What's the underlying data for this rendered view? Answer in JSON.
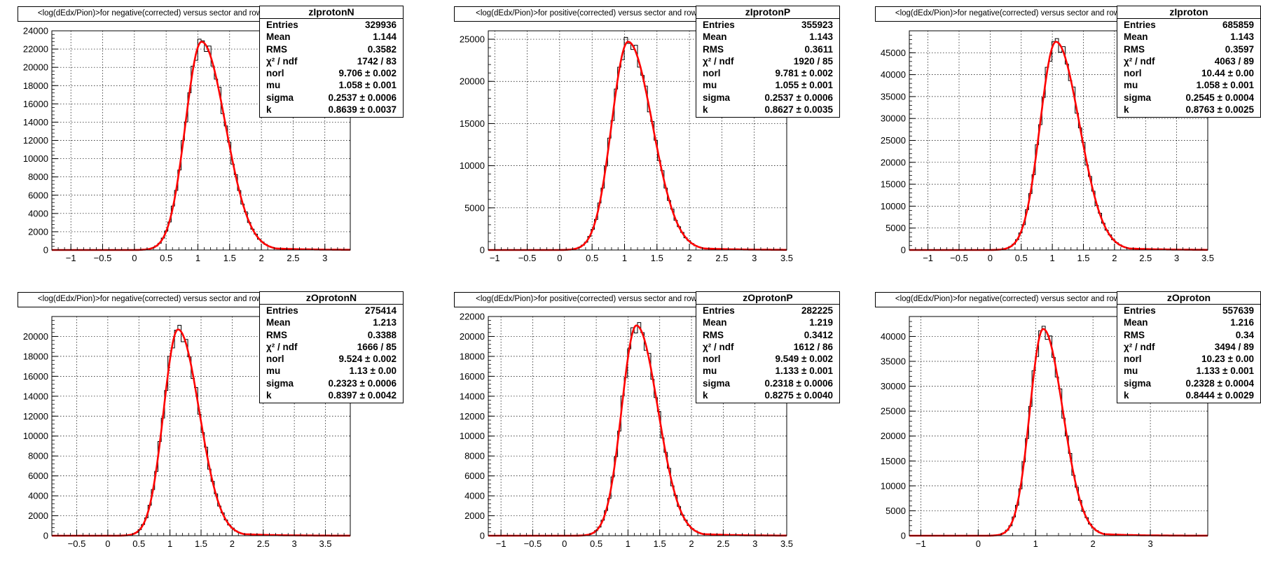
{
  "chart_data": [
    {
      "type": "histogram",
      "name": "zIprotonN",
      "title": "<log(dEdx/Pion)>for negative(corrected) versus sector and row",
      "xlim": [
        -1.3,
        3.4
      ],
      "ylim": [
        0,
        24000
      ],
      "xticks": [
        "-1",
        "-0.5",
        "0",
        "0.5",
        "1",
        "1.5",
        "2",
        "2.5",
        "3"
      ],
      "yticks": [
        "0",
        "2000",
        "4000",
        "6000",
        "8000",
        "10000",
        "12000",
        "14000",
        "16000",
        "18000",
        "20000",
        "22000",
        "24000"
      ],
      "peak": 22800,
      "stats": {
        "Entries": "329936",
        "Mean": "1.144",
        "RMS": "0.3582",
        "chi2_ndf": "1742 / 83",
        "norl": "9.706 ± 0.002",
        "mu": "1.058 ± 0.001",
        "sigma": "0.2537 ± 0.0006",
        "k": "0.8639 ± 0.0037"
      },
      "fit": {
        "mu": 1.058,
        "sigma": 0.2537,
        "k": 0.8639
      }
    },
    {
      "type": "histogram",
      "name": "zIprotonP",
      "title": "<log(dEdx/Pion)>for positive(corrected) versus sector and row",
      "xlim": [
        -1.1,
        3.5
      ],
      "ylim": [
        0,
        26000
      ],
      "xticks": [
        "-1",
        "-0.5",
        "0",
        "0.5",
        "1",
        "1.5",
        "2",
        "2.5",
        "3",
        "3.5"
      ],
      "yticks": [
        "0",
        "5000",
        "10000",
        "15000",
        "20000",
        "25000"
      ],
      "peak": 24700,
      "stats": {
        "Entries": "355923",
        "Mean": "1.143",
        "RMS": "0.3611",
        "chi2_ndf": "1920 / 85",
        "norl": "9.781 ± 0.002",
        "mu": "1.055 ± 0.001",
        "sigma": "0.2537 ± 0.0006",
        "k": "0.8627 ± 0.0035"
      },
      "fit": {
        "mu": 1.055,
        "sigma": 0.2537,
        "k": 0.8627
      }
    },
    {
      "type": "histogram",
      "name": "zIproton",
      "title": "<log(dEdx/Pion)>for negative(corrected) versus sector and row",
      "xlim": [
        -1.3,
        3.5
      ],
      "ylim": [
        0,
        50000
      ],
      "xticks": [
        "-1",
        "-0.5",
        "0",
        "0.5",
        "1",
        "1.5",
        "2",
        "2.5",
        "3",
        "3.5"
      ],
      "yticks": [
        "0",
        "5000",
        "10000",
        "15000",
        "20000",
        "25000",
        "30000",
        "35000",
        "40000",
        "45000"
      ],
      "peak": 47500,
      "stats": {
        "Entries": "685859",
        "Mean": "1.143",
        "RMS": "0.3597",
        "chi2_ndf": "4063 / 89",
        "norl": "10.44 ± 0.00",
        "mu": "1.058 ± 0.001",
        "sigma": "0.2545 ± 0.0004",
        "k": "0.8763 ± 0.0025"
      },
      "fit": {
        "mu": 1.058,
        "sigma": 0.2545,
        "k": 0.8763
      }
    },
    {
      "type": "histogram",
      "name": "zOprotonN",
      "title": "<log(dEdx/Pion)>for negative(corrected) versus sector and row",
      "xlim": [
        -0.9,
        3.9
      ],
      "ylim": [
        0,
        22000
      ],
      "xticks": [
        "-0.5",
        "0",
        "0.5",
        "1",
        "1.5",
        "2",
        "2.5",
        "3",
        "3.5"
      ],
      "yticks": [
        "0",
        "2000",
        "4000",
        "6000",
        "8000",
        "10000",
        "12000",
        "14000",
        "16000",
        "18000",
        "20000"
      ],
      "peak": 20700,
      "stats": {
        "Entries": "275414",
        "Mean": "1.213",
        "RMS": "0.3388",
        "chi2_ndf": "1666 / 85",
        "norl": "9.524 ± 0.002",
        "mu": "1.13 ± 0.00",
        "sigma": "0.2323 ± 0.0006",
        "k": "0.8397 ± 0.0042"
      },
      "fit": {
        "mu": 1.13,
        "sigma": 0.2323,
        "k": 0.8397
      }
    },
    {
      "type": "histogram",
      "name": "zOprotonP",
      "title": "<log(dEdx/Pion)>for positive(corrected) versus sector and row",
      "xlim": [
        -1.2,
        3.5
      ],
      "ylim": [
        0,
        22000
      ],
      "xticks": [
        "-1",
        "-0.5",
        "0",
        "0.5",
        "1",
        "1.5",
        "2",
        "2.5",
        "3",
        "3.5"
      ],
      "yticks": [
        "0",
        "2000",
        "4000",
        "6000",
        "8000",
        "10000",
        "12000",
        "14000",
        "16000",
        "18000",
        "20000",
        "22000"
      ],
      "peak": 21100,
      "stats": {
        "Entries": "282225",
        "Mean": "1.219",
        "RMS": "0.3412",
        "chi2_ndf": "1612 / 86",
        "norl": "9.549 ± 0.002",
        "mu": "1.133 ± 0.001",
        "sigma": "0.2318 ± 0.0006",
        "k": "0.8275 ± 0.0040"
      },
      "fit": {
        "mu": 1.133,
        "sigma": 0.2318,
        "k": 0.8275
      }
    },
    {
      "type": "histogram",
      "name": "zOproton",
      "title": "<log(dEdx/Pion)>for negative(corrected) versus sector and row",
      "xlim": [
        -1.2,
        4.0
      ],
      "ylim": [
        0,
        44000
      ],
      "xticks": [
        "-1",
        "0",
        "1",
        "2",
        "3"
      ],
      "yticks": [
        "0",
        "5000",
        "10000",
        "15000",
        "20000",
        "25000",
        "30000",
        "35000",
        "40000"
      ],
      "peak": 41500,
      "stats": {
        "Entries": "557639",
        "Mean": "1.216",
        "RMS": "0.34",
        "chi2_ndf": "3494 / 89",
        "norl": "10.23 ± 0.00",
        "mu": "1.133 ± 0.001",
        "sigma": "0.2328 ± 0.0004",
        "k": "0.8444 ± 0.0029"
      },
      "fit": {
        "mu": 1.133,
        "sigma": 0.2328,
        "k": 0.8444
      }
    }
  ],
  "colors": {
    "fit_curve": "#ff0000",
    "histogram": "#000000",
    "grid": "#000000",
    "background": "#ffffff"
  }
}
